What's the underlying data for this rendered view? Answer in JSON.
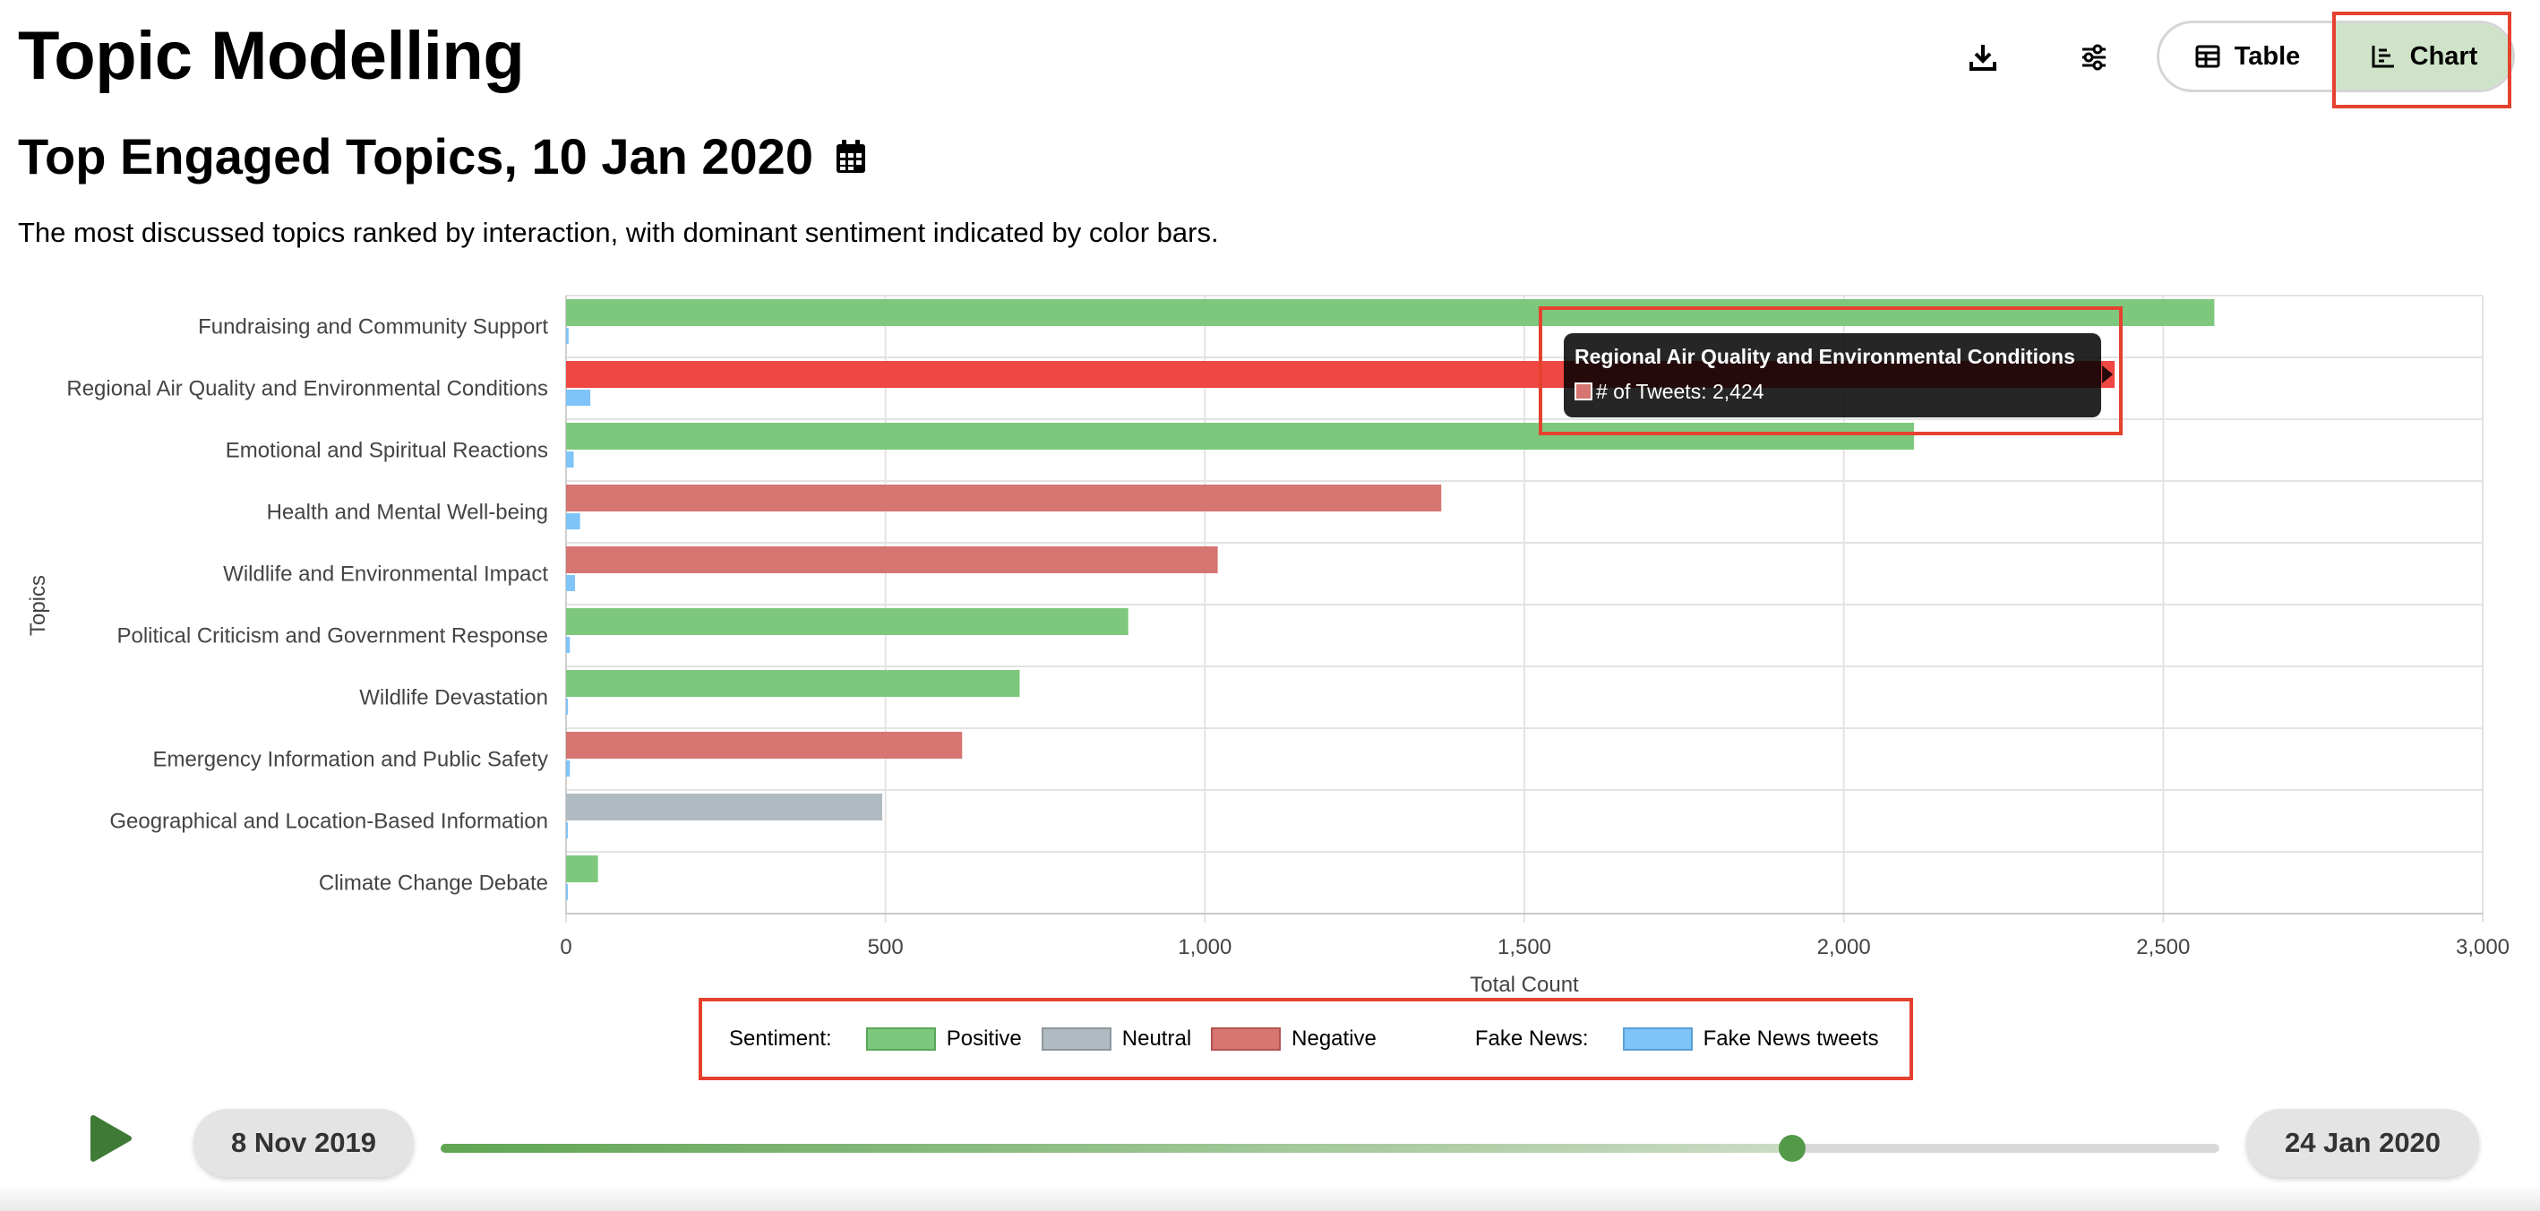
{
  "page": {
    "title": "Topic Modelling",
    "chart_title": "Top Engaged Topics, 10 Jan 2020",
    "description": "The most discussed topics ranked by interaction, with dominant sentiment indicated by color bars."
  },
  "toolbar": {
    "download_icon": "download-icon",
    "settings_icon": "sliders-icon",
    "table_label": "Table",
    "chart_label": "Chart",
    "active_view": "Chart"
  },
  "colors": {
    "positive": "#7ec87d",
    "neutral": "#b0bac1",
    "negative": "#d67571",
    "negative_active": "#ee4744",
    "fake_news": "#7fc4f9",
    "highlight": "#e5412f",
    "slider": "#529a48"
  },
  "chart_data": {
    "type": "bar",
    "orientation": "horizontal",
    "title": "",
    "xlabel": "Total Count",
    "ylabel": "Topics",
    "xlim": [
      0,
      3000
    ],
    "xticks": [
      0,
      500,
      1000,
      1500,
      2000,
      2500,
      3000
    ],
    "xtick_labels": [
      "0",
      "500",
      "1,000",
      "1,500",
      "2,000",
      "2,500",
      "3,000"
    ],
    "grid": true,
    "categories": [
      "Fundraising and Community Support",
      "Regional Air Quality and Environmental Conditions",
      "Emotional and Spiritual Reactions",
      "Health and Mental Well-being",
      "Wildlife and Environmental Impact",
      "Political Criticism and Government Response",
      "Wildlife Devastation",
      "Emergency Information and Public Safety",
      "Geographical and Location-Based Information",
      "Climate Change Debate"
    ],
    "sentiment": [
      "Positive",
      "Negative",
      "Positive",
      "Negative",
      "Negative",
      "Positive",
      "Positive",
      "Negative",
      "Neutral",
      "Positive"
    ],
    "series": [
      {
        "name": "# of Tweets",
        "values": [
          2580,
          2424,
          2110,
          1370,
          1020,
          880,
          710,
          620,
          495,
          50
        ]
      },
      {
        "name": "Fake News tweets",
        "values": [
          4,
          38,
          12,
          22,
          14,
          6,
          3,
          6,
          2,
          1
        ]
      }
    ],
    "legend": {
      "placement": "bottom",
      "sentiment_label": "Sentiment:",
      "sentiment_items": [
        "Positive",
        "Neutral",
        "Negative"
      ],
      "fake_label": "Fake News:",
      "fake_items": [
        "Fake News tweets"
      ]
    },
    "tooltip": {
      "title": "Regional Air Quality and Environmental Conditions",
      "text": "# of Tweets: 2,424",
      "category_index": 1
    }
  },
  "timeline": {
    "start_label": "8 Nov 2019",
    "end_label": "24 Jan 2020",
    "progress": 0.76,
    "play_icon": "play-icon"
  }
}
